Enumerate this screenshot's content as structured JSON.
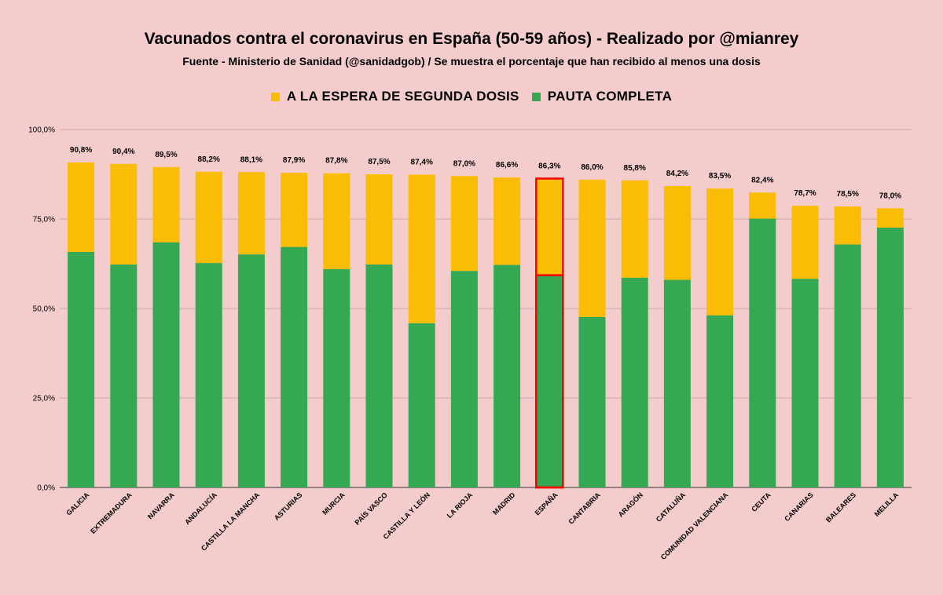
{
  "chart_data": {
    "type": "bar",
    "stacked": true,
    "title": "Vacunados contra el coronavirus en España (50-59 años) - Realizado por @mianrey",
    "subtitle": "Fuente - Ministerio de Sanidad (@sanidadgob) / Se muestra el porcentaje que han recibido al menos una dosis",
    "legend_position": "top",
    "ylim": [
      0,
      100
    ],
    "yticks": [
      0,
      25,
      50,
      75,
      100
    ],
    "ytick_labels": [
      "0,0%",
      "25,0%",
      "50,0%",
      "75,0%",
      "100,0%"
    ],
    "grid": true,
    "highlight_category": "ESPAÑA",
    "highlight_color": "#ff0000",
    "categories": [
      "GALICIA",
      "EXTREMADURA",
      "NAVARRA",
      "ANDALUCÍA",
      "CASTILLA LA MANCHA",
      "ASTURIAS",
      "MURCIA",
      "PAÍS VASCO",
      "CASTILLA Y LEÓN",
      "LA RIOJA",
      "MADRID",
      "ESPAÑA",
      "CANTABRIA",
      "ARAGÓN",
      "CATALUÑA",
      "COMUNIDAD VALENCIANA",
      "CEUTA",
      "CANARIAS",
      "BALEARES",
      "MELILLA"
    ],
    "series": [
      {
        "name": "PAUTA COMPLETA",
        "color": "#34a853",
        "values": [
          65.8,
          62.3,
          68.5,
          62.7,
          65.1,
          67.2,
          61.0,
          62.3,
          45.9,
          60.5,
          62.2,
          59.3,
          47.6,
          58.6,
          58.0,
          48.1,
          75.1,
          58.3,
          67.9,
          72.6
        ]
      },
      {
        "name": "A LA ESPERA DE SEGUNDA DOSIS",
        "color": "#fbbc04",
        "values": [
          25.0,
          28.1,
          21.0,
          25.5,
          23.0,
          20.7,
          26.8,
          25.2,
          41.5,
          26.5,
          24.4,
          27.0,
          38.4,
          27.2,
          26.2,
          35.4,
          7.3,
          20.4,
          10.6,
          5.4
        ]
      }
    ],
    "totals": [
      90.8,
      90.4,
      89.5,
      88.2,
      88.1,
      87.9,
      87.8,
      87.5,
      87.4,
      87.0,
      86.6,
      86.3,
      86.0,
      85.8,
      84.2,
      83.5,
      82.4,
      78.7,
      78.5,
      78.0
    ],
    "total_labels": [
      "90,8%",
      "90,4%",
      "89,5%",
      "88,2%",
      "88,1%",
      "87,9%",
      "87,8%",
      "87,5%",
      "87,4%",
      "87,0%",
      "86,6%",
      "86,3%",
      "86,0%",
      "85,8%",
      "84,2%",
      "83,5%",
      "82,4%",
      "78,7%",
      "78,5%",
      "78,0%"
    ]
  },
  "legend": {
    "item1_label": "A LA ESPERA DE SEGUNDA DOSIS",
    "item1_color": "#fbbc04",
    "item2_label": "PAUTA COMPLETA",
    "item2_color": "#34a853"
  }
}
